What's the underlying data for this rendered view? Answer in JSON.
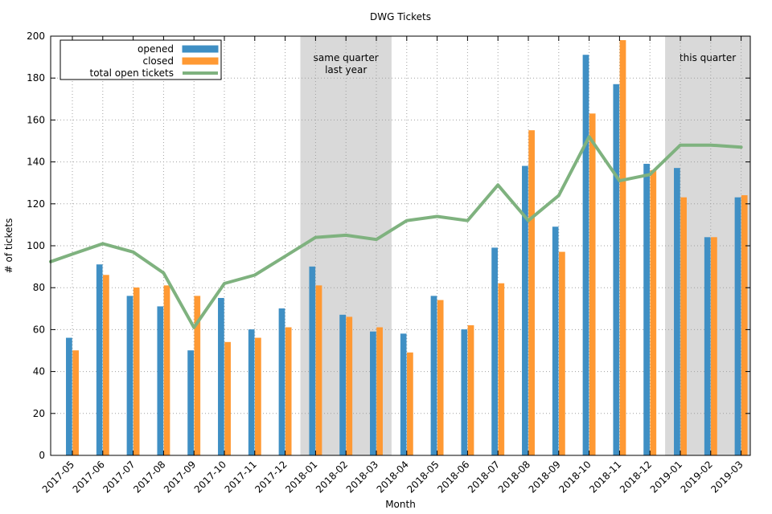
{
  "chart_data": {
    "type": "bar",
    "title": "DWG Tickets",
    "xlabel": "Month",
    "ylabel": "# of tickets",
    "ylim": [
      0,
      200
    ],
    "yticks": [
      0,
      20,
      40,
      60,
      80,
      100,
      120,
      140,
      160,
      180,
      200
    ],
    "grid": true,
    "legend_position": "top-left",
    "categories": [
      "2017-05",
      "2017-06",
      "2017-07",
      "2017-08",
      "2017-09",
      "2017-10",
      "2017-11",
      "2017-12",
      "2018-01",
      "2018-02",
      "2018-03",
      "2018-04",
      "2018-05",
      "2018-06",
      "2018-07",
      "2018-08",
      "2018-09",
      "2018-10",
      "2018-11",
      "2018-12",
      "2019-01",
      "2019-02",
      "2019-03"
    ],
    "series": [
      {
        "name": "opened",
        "type": "bar",
        "color": "#3f8fc4",
        "values": [
          56,
          91,
          76,
          71,
          50,
          75,
          60,
          70,
          90,
          67,
          59,
          58,
          76,
          60,
          99,
          138,
          109,
          191,
          177,
          139,
          137,
          104,
          123
        ]
      },
      {
        "name": "closed",
        "type": "bar",
        "color": "#ff9933",
        "values": [
          50,
          86,
          80,
          81,
          76,
          54,
          56,
          61,
          81,
          66,
          61,
          49,
          74,
          62,
          82,
          155,
          97,
          163,
          198,
          136,
          123,
          104,
          124
        ]
      },
      {
        "name": "total open tickets",
        "type": "line",
        "color": "#7fb27f",
        "values": [
          96,
          101,
          97,
          87,
          61,
          82,
          86,
          95,
          104,
          105,
          103,
          112,
          114,
          112,
          129,
          112,
          124,
          152,
          131,
          134,
          148,
          148,
          147
        ]
      }
    ],
    "shaded_regions": [
      {
        "from": "2018-01",
        "to": "2018-03",
        "label": [
          "same quarter",
          "last year"
        ],
        "color": "#d9d9d9"
      },
      {
        "from": "2019-01",
        "to": "2019-03",
        "label": [
          "this quarter"
        ],
        "color": "#d9d9d9"
      }
    ]
  }
}
